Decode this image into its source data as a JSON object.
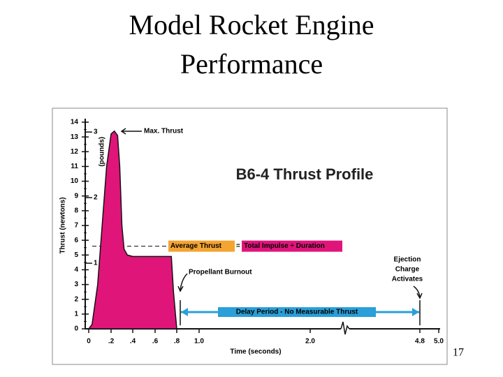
{
  "slide_title": [
    "Model Rocket Engine",
    "Performance"
  ],
  "page_number": "17",
  "chart_data": {
    "type": "area",
    "title": "B6-4 Thrust Profile",
    "x_label": "Time (seconds)",
    "y_label": "Thrust (newtons)",
    "y2_label": "(pounds)",
    "x": [
      0,
      0.03,
      0.08,
      0.12,
      0.16,
      0.2,
      0.23,
      0.26,
      0.28,
      0.3,
      0.32,
      0.35,
      0.4,
      0.5,
      0.6,
      0.75,
      0.77,
      0.8
    ],
    "series": [
      {
        "color": "#e0157a",
        "values": [
          0,
          0.3,
          3,
          7,
          11,
          13.2,
          13.4,
          13.1,
          11,
          7,
          5.4,
          5,
          4.9,
          4.9,
          4.9,
          4.9,
          2.5,
          0
        ]
      }
    ],
    "xlim": [
      0,
      5.0
    ],
    "xticks": [
      0,
      {
        "value": 0.2,
        "label": ".2"
      },
      {
        "value": 0.4,
        "label": ".4"
      },
      {
        "value": 0.6,
        "label": ".6"
      },
      {
        "value": 0.8,
        "label": ".8"
      },
      {
        "value": 1.0,
        "label": "1.0"
      },
      {
        "value": 2.0,
        "label": "2.0"
      },
      4.8,
      {
        "value": 5.0,
        "label": "5.0"
      }
    ],
    "ylim": [
      0,
      14
    ],
    "yticks": [
      0,
      1,
      2,
      3,
      4,
      5,
      6,
      7,
      8,
      9,
      10,
      11,
      12,
      13,
      14
    ],
    "y2lim": [
      0,
      3.15
    ],
    "y2ticks": [
      1,
      2,
      3
    ],
    "average_thrust": {
      "value": 5.6,
      "parts": [
        "Average Thrust",
        "=",
        "Total Impulse ÷ Duration"
      ]
    },
    "annotations": {
      "max_thrust": "Max. Thrust",
      "burnout": "Propellant Burnout",
      "delay": "Delay Period - No Measurable Thrust",
      "ejection": [
        "Ejection",
        "Charge",
        "Activates"
      ]
    },
    "delay_period": [
      0.8,
      4.8
    ]
  }
}
